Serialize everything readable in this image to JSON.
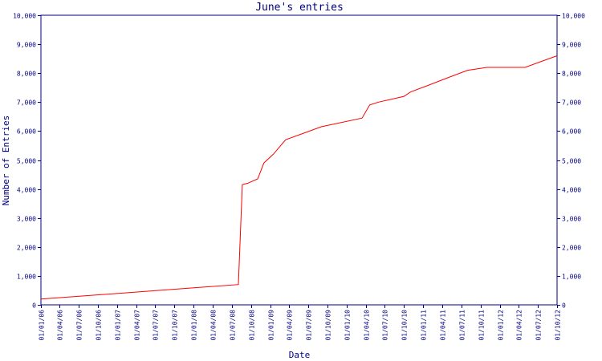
{
  "chart_data": {
    "type": "line",
    "title": "June's entries",
    "xlabel": "Date",
    "ylabel": "Number of Entries",
    "ylim": [
      0,
      10000
    ],
    "yticks": [
      0,
      1000,
      2000,
      3000,
      4000,
      5000,
      6000,
      7000,
      8000,
      9000,
      10000
    ],
    "ytick_labels": [
      "0",
      "1,000",
      "2,000",
      "3,000",
      "4,000",
      "5,000",
      "6,000",
      "7,000",
      "8,000",
      "9,000",
      "10,000"
    ],
    "xlim": [
      "2006-01-01",
      "2012-10-01"
    ],
    "xticks": [
      "2006-01-01",
      "2006-04-01",
      "2006-07-01",
      "2006-10-01",
      "2007-01-01",
      "2007-04-01",
      "2007-07-01",
      "2007-10-01",
      "2008-01-01",
      "2008-04-01",
      "2008-07-01",
      "2008-10-01",
      "2009-01-01",
      "2009-04-01",
      "2009-07-01",
      "2009-10-01",
      "2010-01-01",
      "2010-04-01",
      "2010-07-01",
      "2010-10-01",
      "2011-01-01",
      "2011-04-01",
      "2011-07-01",
      "2011-10-01",
      "2012-01-01",
      "2012-04-01",
      "2012-07-01",
      "2012-10-01"
    ],
    "xtick_labels": [
      "01/01/06",
      "01/04/06",
      "01/07/06",
      "01/10/06",
      "01/01/07",
      "01/04/07",
      "01/07/07",
      "01/10/07",
      "01/01/08",
      "01/04/08",
      "01/07/08",
      "01/10/08",
      "01/01/09",
      "01/04/09",
      "01/07/09",
      "01/10/09",
      "01/01/10",
      "01/04/10",
      "01/07/10",
      "01/10/10",
      "01/01/11",
      "01/04/11",
      "01/07/11",
      "01/10/11",
      "01/01/12",
      "01/04/12",
      "01/07/12",
      "01/10/12"
    ],
    "grid": false,
    "legend": "none",
    "series": [
      {
        "color": "#ff0000",
        "points": [
          [
            "2006-01-01",
            200
          ],
          [
            "2008-08-01",
            700
          ],
          [
            "2008-08-20",
            4150
          ],
          [
            "2008-09-15",
            4200
          ],
          [
            "2008-11-01",
            4350
          ],
          [
            "2008-12-01",
            4900
          ],
          [
            "2009-01-15",
            5200
          ],
          [
            "2009-03-15",
            5700
          ],
          [
            "2009-09-01",
            6150
          ],
          [
            "2010-03-15",
            6450
          ],
          [
            "2010-04-20",
            6900
          ],
          [
            "2010-06-01",
            7000
          ],
          [
            "2010-08-01",
            7100
          ],
          [
            "2010-10-01",
            7200
          ],
          [
            "2010-11-01",
            7350
          ],
          [
            "2011-02-01",
            7600
          ],
          [
            "2011-05-01",
            7850
          ],
          [
            "2011-08-01",
            8100
          ],
          [
            "2011-11-01",
            8200
          ],
          [
            "2012-02-01",
            8200
          ],
          [
            "2012-05-01",
            8200
          ],
          [
            "2012-10-01",
            8600
          ]
        ]
      }
    ]
  },
  "colors": {
    "axis": "#000080",
    "text": "#000080",
    "series": "#ff0000"
  }
}
